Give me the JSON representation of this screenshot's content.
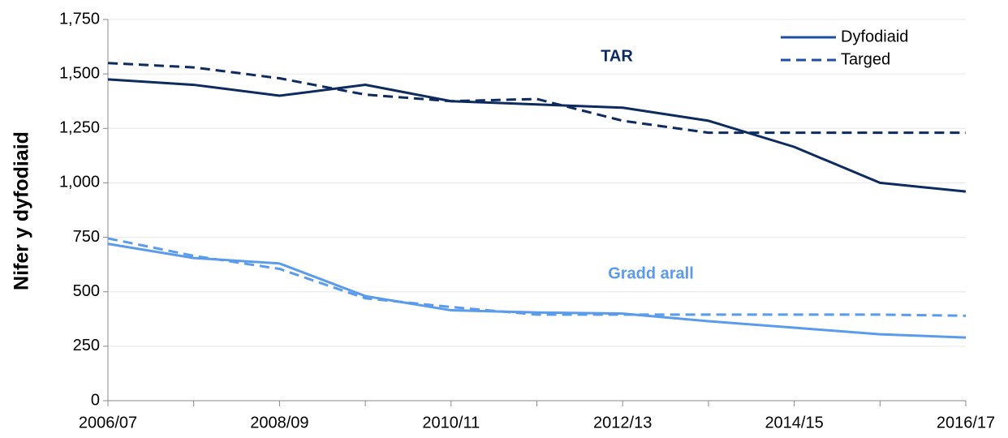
{
  "chart_data": {
    "type": "line",
    "ylabel": "Nifer y dyfodiaid",
    "categories": [
      "2006/07",
      null,
      "2008/09",
      null,
      "2010/11",
      null,
      "2012/13",
      null,
      "2014/15",
      null,
      "2016/17"
    ],
    "ylim": [
      0,
      1750
    ],
    "yticks": [
      0,
      250,
      500,
      750,
      {
        "value": 1000,
        "label": "1,000"
      },
      {
        "value": 1250,
        "label": "1,250"
      },
      {
        "value": 1500,
        "label": "1,500"
      },
      {
        "value": 1750,
        "label": "1,750"
      }
    ],
    "grid": true,
    "legend_position": "upper right",
    "legend_color": "#1f4ea0",
    "groups": [
      {
        "label": "TAR",
        "color": "#0d2b5e",
        "series": [
          {
            "name": "Dyfodiaid",
            "dashed": false,
            "values": [
              1475,
              1450,
              1400,
              1450,
              1375,
              1360,
              1345,
              1285,
              1165,
              1000,
              960
            ]
          },
          {
            "name": "Targed",
            "dashed": true,
            "values": [
              1550,
              1530,
              1480,
              1405,
              1375,
              1385,
              1285,
              1230,
              1230,
              1230,
              1230
            ]
          }
        ]
      },
      {
        "label": "Gradd arall",
        "color": "#5b9bec",
        "series": [
          {
            "name": "Dyfodiaid",
            "dashed": false,
            "values": [
              720,
              655,
              630,
              480,
              415,
              405,
              400,
              365,
              335,
              305,
              290
            ]
          },
          {
            "name": "Targed",
            "dashed": true,
            "values": [
              745,
              665,
              605,
              470,
              430,
              395,
              395,
              395,
              395,
              395,
              390
            ]
          }
        ]
      }
    ]
  }
}
